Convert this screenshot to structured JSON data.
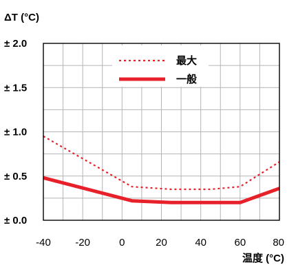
{
  "chart_data": {
    "type": "line",
    "ylabel": "ΔT (°C)",
    "xlabel": "温度 (°C)",
    "xlim": [
      -40,
      80
    ],
    "ylim": [
      0.0,
      2.0
    ],
    "x_ticks": [
      -40,
      -20,
      0,
      20,
      40,
      60,
      80
    ],
    "x_tick_labels": [
      "-40",
      "-20",
      "0",
      "20",
      "40",
      "60",
      "80"
    ],
    "y_ticks": [
      0.0,
      0.5,
      1.0,
      1.5,
      2.0
    ],
    "y_tick_labels": [
      "± 0.0",
      "± 0.5",
      "± 1.0",
      "± 1.5",
      "± 2.0"
    ],
    "grid": true,
    "legend_position": "top-right",
    "series": [
      {
        "name": "最大",
        "style": "dotted",
        "color": "#e8202a",
        "points": [
          [
            -40,
            0.95
          ],
          [
            5,
            0.38
          ],
          [
            25,
            0.35
          ],
          [
            45,
            0.35
          ],
          [
            60,
            0.38
          ],
          [
            80,
            0.66
          ]
        ]
      },
      {
        "name": "一般",
        "style": "solid",
        "color": "#e8202a",
        "points": [
          [
            -40,
            0.48
          ],
          [
            5,
            0.22
          ],
          [
            25,
            0.2
          ],
          [
            60,
            0.2
          ],
          [
            80,
            0.36
          ]
        ]
      }
    ]
  }
}
